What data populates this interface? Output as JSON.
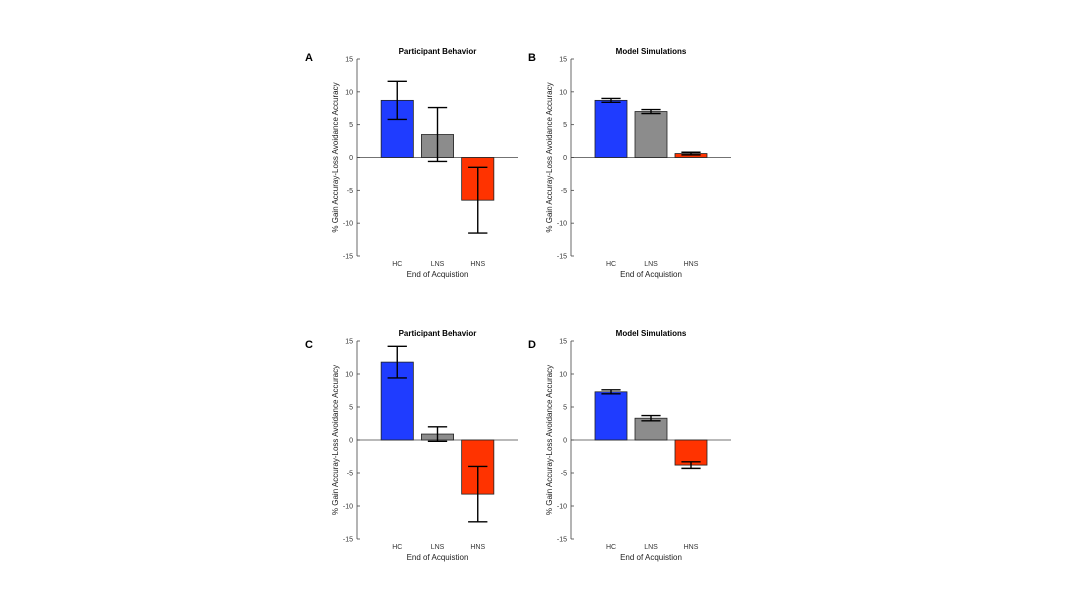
{
  "figure": {
    "panels": [
      "A",
      "B",
      "C",
      "D"
    ]
  },
  "colors": {
    "HC": "#1f3cff",
    "LNS": "#8c8c8c",
    "HNS": "#ff3300"
  },
  "chart_data": [
    {
      "panel": "A",
      "type": "bar",
      "title": "Participant Behavior",
      "xlabel": "End of Acquistion",
      "ylabel": "% Gain Accuray-Loss Avoidance Accuracy",
      "categories": [
        "HC",
        "LNS",
        "HNS"
      ],
      "values": [
        8.7,
        3.5,
        -6.5
      ],
      "errors": [
        2.9,
        4.1,
        5.0
      ],
      "ylim": [
        -15,
        15
      ],
      "yticks": [
        15,
        10,
        5,
        0,
        -5,
        -10,
        -15
      ]
    },
    {
      "panel": "B",
      "type": "bar",
      "title": "Model Simulations",
      "xlabel": "End of Acquistion",
      "ylabel": "% Gain Accuray-Loss Avoidance Accuracy",
      "categories": [
        "HC",
        "LNS",
        "HNS"
      ],
      "values": [
        8.7,
        7.0,
        0.6
      ],
      "errors": [
        0.3,
        0.3,
        0.2
      ],
      "ylim": [
        -15,
        15
      ],
      "yticks": [
        15,
        10,
        5,
        0,
        -5,
        -10,
        -15
      ]
    },
    {
      "panel": "C",
      "type": "bar",
      "title": "Participant Behavior",
      "xlabel": "End of Acquistion",
      "ylabel": "% Gain Accuray-Loss Avoidance Accuracy",
      "categories": [
        "HC",
        "LNS",
        "HNS"
      ],
      "values": [
        11.8,
        0.9,
        -8.2
      ],
      "errors": [
        2.4,
        1.1,
        4.2
      ],
      "ylim": [
        -15,
        15
      ],
      "yticks": [
        15,
        10,
        5,
        0,
        -5,
        -10,
        -15
      ]
    },
    {
      "panel": "D",
      "type": "bar",
      "title": "Model Simulations",
      "xlabel": "End of Acquistion",
      "ylabel": "% Gain Accuray-Loss Avoidance Accuracy",
      "categories": [
        "HC",
        "LNS",
        "HNS"
      ],
      "values": [
        7.3,
        3.3,
        -3.8
      ],
      "errors": [
        0.3,
        0.4,
        0.5
      ],
      "ylim": [
        -15,
        15
      ],
      "yticks": [
        15,
        10,
        5,
        0,
        -5,
        -10,
        -15
      ]
    }
  ]
}
